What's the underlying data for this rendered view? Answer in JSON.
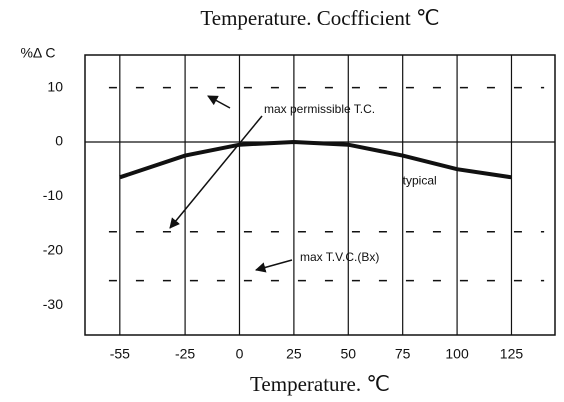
{
  "chart_data": {
    "type": "line",
    "title": "Temperature. Cocfficient ℃",
    "y_label": "%Δ C",
    "x_label": "Temperature. ℃",
    "xlim": [
      -71,
      145
    ],
    "ylim": [
      -35.5,
      16
    ],
    "xticks": [
      -55,
      -25,
      0,
      25,
      50,
      75,
      100,
      125
    ],
    "yticks": [
      10,
      0,
      -10,
      -20,
      -30
    ],
    "grid": true,
    "series": [
      {
        "name": "typical",
        "color": "#111111",
        "x": [
          -55,
          -25,
          0,
          25,
          50,
          75,
          100,
          125
        ],
        "values": [
          -6.5,
          -2.5,
          -0.5,
          0,
          -0.5,
          -2.5,
          -5,
          -6.5
        ]
      },
      {
        "color": "#111111",
        "dashed": true,
        "x": [
          -60,
          140
        ],
        "values": [
          10,
          10
        ]
      },
      {
        "color": "#111111",
        "dashed": true,
        "x": [
          -60,
          140
        ],
        "values": [
          -16.5,
          -16.5
        ]
      },
      {
        "color": "#111111",
        "dashed": true,
        "x": [
          -60,
          140
        ],
        "values": [
          -25.5,
          -25.5
        ]
      }
    ],
    "annotations": [
      "max permissible T.C.",
      "max T.V.C.(Bx)"
    ]
  }
}
